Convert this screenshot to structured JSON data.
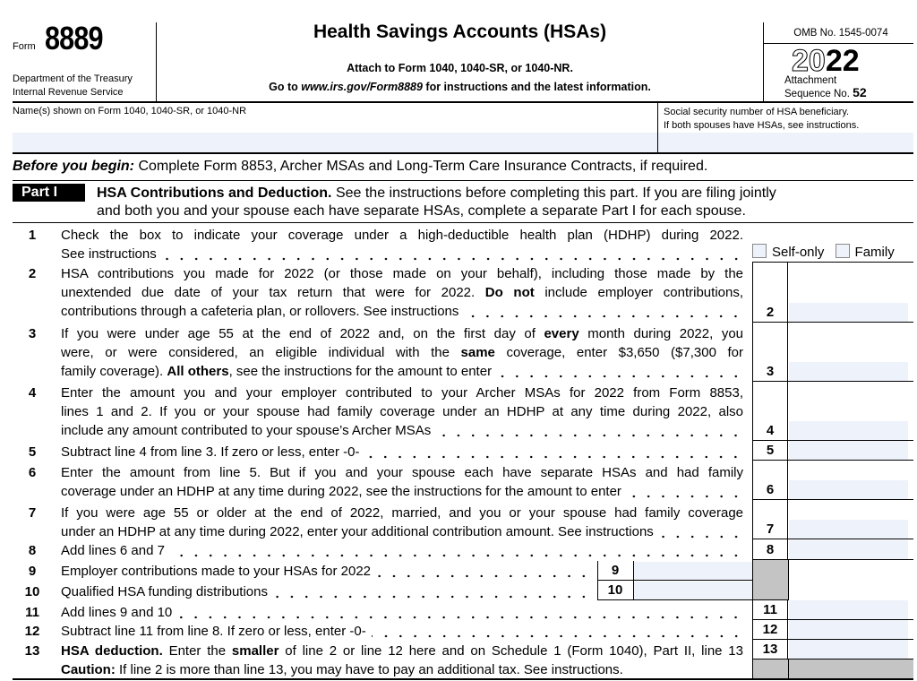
{
  "header": {
    "form_label": "Form",
    "form_number": "8889",
    "dept1": "Department of the Treasury",
    "dept2": "Internal Revenue Service",
    "title": "Health Savings Accounts (HSAs)",
    "attach": "Attach to Form 1040, 1040-SR, or 1040-NR.",
    "goto_pre": "Go to ",
    "goto_url": "www.irs.gov/Form8889",
    "goto_post": " for instructions and the latest information.",
    "omb": "OMB No. 1545-0074",
    "year_outline": "20",
    "year_bold": "22",
    "attachment": "Attachment",
    "sequence": "Sequence No.",
    "sequence_no": "52"
  },
  "names": {
    "name_label": "Name(s) shown on Form 1040, 1040-SR, or 1040-NR",
    "ssn_label1": "Social security number of HSA beneficiary.",
    "ssn_label2": "If both spouses have HSAs, see instructions.",
    "name_value": "",
    "ssn_value": ""
  },
  "before": {
    "bold": "Before you begin:",
    "text": " Complete Form 8853, Archer MSAs and Long-Term Care Insurance Contracts, if required."
  },
  "part1": {
    "tag": "Part I",
    "title": "HSA Contributions and Deduction.",
    "text1": " See the instructions before completing this part. If you are filing jointly",
    "text2": "and both you and your spouse each have separate HSAs, complete a separate Part I for each spouse."
  },
  "checkboxes": [
    {
      "label": "Self-only",
      "checked": false
    },
    {
      "label": "Family",
      "checked": false
    }
  ],
  "lines": [
    {
      "num": "1",
      "text": [
        [
          [
            "Check the box to indicate your coverage under a high-deductible health plan (HDHP) during 2022.",
            false
          ]
        ],
        [
          [
            "See instructions",
            false
          ]
        ]
      ],
      "box": ""
    },
    {
      "num": "2",
      "text": [
        [
          [
            "HSA contributions you made for 2022 (or those made on your behalf), including those made by the",
            false
          ]
        ],
        [
          [
            "unextended due date of your tax return that were for 2022. ",
            false
          ],
          [
            "Do not",
            true
          ],
          [
            " include employer contributions,",
            false
          ]
        ],
        [
          [
            "contributions through a cafeteria plan, or rollovers. See instructions",
            false
          ]
        ]
      ],
      "box": "2",
      "value": ""
    },
    {
      "num": "3",
      "text": [
        [
          [
            "If you were under age 55 at the end of 2022 and, on the first day of ",
            false
          ],
          [
            "every",
            true
          ],
          [
            " month during 2022, you",
            false
          ]
        ],
        [
          [
            "were, or were considered, an eligible individual with the ",
            false
          ],
          [
            "same",
            true
          ],
          [
            " coverage, enter $3,650 ($7,300 for",
            false
          ]
        ],
        [
          [
            "family coverage). ",
            false
          ],
          [
            "All others",
            true
          ],
          [
            ", see the instructions for the amount to enter",
            false
          ]
        ]
      ],
      "box": "3",
      "value": ""
    },
    {
      "num": "4",
      "text": [
        [
          [
            "Enter the amount you and your employer contributed to your Archer MSAs for 2022 from Form 8853,",
            false
          ]
        ],
        [
          [
            "lines 1 and 2. If you or your spouse had family coverage under an HDHP at any time during 2022, also",
            false
          ]
        ],
        [
          [
            "include any amount contributed to your spouse’s Archer MSAs",
            false
          ]
        ]
      ],
      "box": "4",
      "value": ""
    },
    {
      "num": "5",
      "text": [
        [
          [
            "Subtract line 4 from line 3. If zero or less, enter -0-",
            false
          ]
        ]
      ],
      "box": "5",
      "value": ""
    },
    {
      "num": "6",
      "text": [
        [
          [
            "Enter the amount from line 5. But if you and your spouse each have separate HSAs and had family",
            false
          ]
        ],
        [
          [
            "coverage under an HDHP at any time during 2022, see the instructions for the amount to enter",
            false
          ]
        ]
      ],
      "box": "6",
      "value": ""
    },
    {
      "num": "7",
      "text": [
        [
          [
            "If you were age 55 or older at the end of 2022, married, and you or your spouse had family coverage",
            false
          ]
        ],
        [
          [
            "under an HDHP at any time during 2022, enter your additional contribution amount. See instructions",
            false
          ]
        ]
      ],
      "box": "7",
      "value": ""
    },
    {
      "num": "8",
      "text": [
        [
          [
            "Add lines 6 and 7",
            false
          ]
        ]
      ],
      "box": "8",
      "value": ""
    },
    {
      "num": "9",
      "text": [
        [
          [
            "Employer contributions made to your HSAs for 2022",
            false
          ]
        ]
      ],
      "box": "9",
      "value": ""
    },
    {
      "num": "10",
      "text": [
        [
          [
            "Qualified HSA funding distributions",
            false
          ]
        ]
      ],
      "box": "10",
      "value": ""
    },
    {
      "num": "11",
      "text": [
        [
          [
            "Add lines 9 and 10",
            false
          ]
        ]
      ],
      "box": "11",
      "value": ""
    },
    {
      "num": "12",
      "text": [
        [
          [
            "Subtract line 11 from line 8. If zero or less, enter -0-",
            false
          ]
        ]
      ],
      "box": "12",
      "value": ""
    },
    {
      "num": "13",
      "text": [
        [
          [
            "HSA deduction.",
            true
          ],
          [
            " Enter the ",
            false
          ],
          [
            "smaller",
            true
          ],
          [
            " of line 2 or line 12 here and on Schedule 1 (Form 1040), Part II, line 13",
            false
          ]
        ],
        [
          [
            "Caution:",
            true
          ],
          [
            " If line 2 is more than line 13, you may have to pay an additional tax. See instructions.",
            false
          ]
        ]
      ],
      "box": "13",
      "value": ""
    }
  ],
  "colors": {
    "field_fill": "#eef2fb",
    "shaded": "#c4c4c4"
  }
}
